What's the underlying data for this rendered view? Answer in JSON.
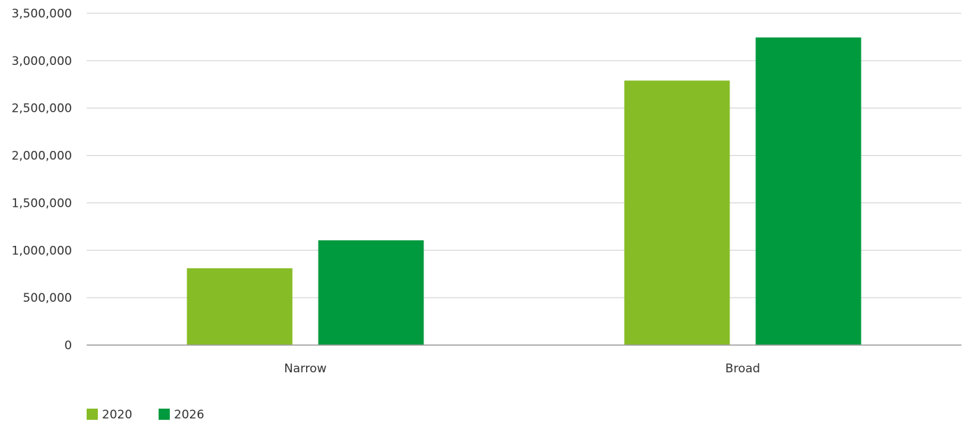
{
  "chart_data": {
    "type": "bar",
    "title": "",
    "xlabel": "",
    "ylabel": "",
    "categories": [
      "Narrow",
      "Broad"
    ],
    "series": [
      {
        "name": "2020",
        "values": [
          810000,
          2790000
        ],
        "color": "#86bc25"
      },
      {
        "name": "2026",
        "values": [
          1105000,
          3245000
        ],
        "color": "#009a3e"
      }
    ],
    "ylim": [
      0,
      3500000
    ],
    "y_ticks": [
      0,
      500000,
      1000000,
      1500000,
      2000000,
      2500000,
      3000000,
      3500000
    ],
    "y_tick_labels": [
      "0",
      "500,000",
      "1,000,000",
      "1,500,000",
      "2,000,000",
      "2,500,000",
      "3,000,000",
      "3,500,000"
    ],
    "grid": true,
    "legend_position": "bottom-left"
  },
  "colors": {
    "gridline": "#cccccc",
    "axis": "#999999",
    "text": "#333333"
  }
}
